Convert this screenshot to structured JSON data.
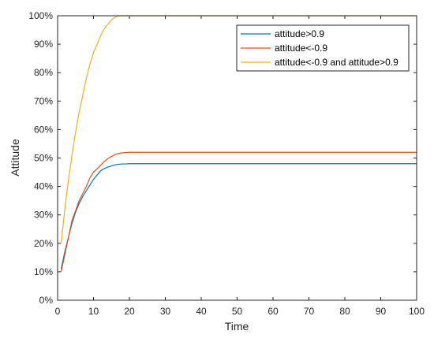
{
  "chart_data": {
    "type": "line",
    "xlabel": "Time",
    "ylabel": "Attitude",
    "xlim": [
      0,
      100
    ],
    "ylim": [
      0,
      100
    ],
    "x_ticks": [
      0,
      10,
      20,
      30,
      40,
      50,
      60,
      70,
      80,
      90,
      100
    ],
    "y_ticks": [
      0,
      10,
      20,
      30,
      40,
      50,
      60,
      70,
      80,
      90,
      100
    ],
    "x_tick_labels": [
      "0",
      "10",
      "20",
      "30",
      "40",
      "50",
      "60",
      "70",
      "80",
      "90",
      "100"
    ],
    "y_tick_labels": [
      "0%",
      "10%",
      "20%",
      "30%",
      "40%",
      "50%",
      "60%",
      "70%",
      "80%",
      "90%",
      "100%"
    ],
    "legend_position": "top-right",
    "grid": false,
    "series": [
      {
        "name": "attitude>0.9",
        "color": "#0072BD",
        "x": [
          1,
          2,
          3,
          4,
          5,
          6,
          7,
          8,
          9,
          10,
          11,
          12,
          13,
          14,
          15,
          16,
          17,
          18,
          19,
          20,
          21,
          100
        ],
        "y": [
          11,
          17,
          22,
          27,
          31,
          34,
          36.5,
          38.5,
          40.5,
          42.5,
          44,
          45.5,
          46.3,
          46.8,
          47.2,
          47.6,
          47.8,
          47.9,
          47.9,
          48,
          48,
          48
        ]
      },
      {
        "name": "attitude<-0.9",
        "color": "#D95319",
        "x": [
          1,
          2,
          3,
          4,
          5,
          6,
          7,
          8,
          9,
          10,
          11,
          12,
          13,
          14,
          15,
          16,
          17,
          18,
          19,
          20,
          21,
          100
        ],
        "y": [
          10,
          16,
          22,
          28,
          31.5,
          35,
          37.5,
          40,
          43,
          45,
          46.2,
          47.5,
          48.8,
          49.8,
          50.5,
          51.2,
          51.6,
          51.8,
          51.9,
          52,
          52,
          52
        ]
      },
      {
        "name": "attitude<-0.9 and attitude>0.9",
        "color": "#EDB120",
        "x": [
          1,
          2,
          3,
          4,
          5,
          6,
          7,
          8,
          9,
          10,
          11,
          12,
          13,
          14,
          15,
          16,
          17,
          18,
          19,
          20,
          100
        ],
        "y": [
          20,
          32,
          42,
          51,
          59,
          66,
          72,
          78,
          83,
          87,
          90,
          93,
          95.5,
          97,
          98.5,
          99.5,
          100,
          100,
          100,
          100,
          100
        ]
      }
    ]
  }
}
